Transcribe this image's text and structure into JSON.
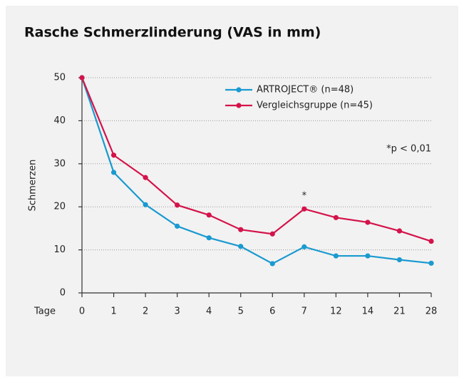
{
  "chart_data": {
    "type": "line",
    "title": "Rasche Schmerzlinderung (VAS in mm)",
    "y_label": "Schmerzen",
    "x_label": "Tage",
    "categories": [
      "0",
      "1",
      "2",
      "3",
      "4",
      "5",
      "6",
      "7",
      "12",
      "14",
      "21",
      "28"
    ],
    "series": [
      {
        "name": "ARTROJECT® (n=48)",
        "color": "#1a9ad0",
        "values": [
          50,
          28,
          20.5,
          15.5,
          12.8,
          10.8,
          6.8,
          10.7,
          8.6,
          8.6,
          7.7,
          6.9
        ]
      },
      {
        "name": "Vergleichsgruppe (n=45)",
        "color": "#d4134a",
        "values": [
          50,
          32,
          26.8,
          20.4,
          18.1,
          14.7,
          13.7,
          19.5,
          17.5,
          16.4,
          14.4,
          12
        ]
      }
    ],
    "ylim": [
      0,
      50
    ],
    "yticks": [
      0,
      10,
      20,
      30,
      40,
      50
    ],
    "grid": true,
    "annotations": [
      "*",
      "*p < 0,01"
    ]
  }
}
